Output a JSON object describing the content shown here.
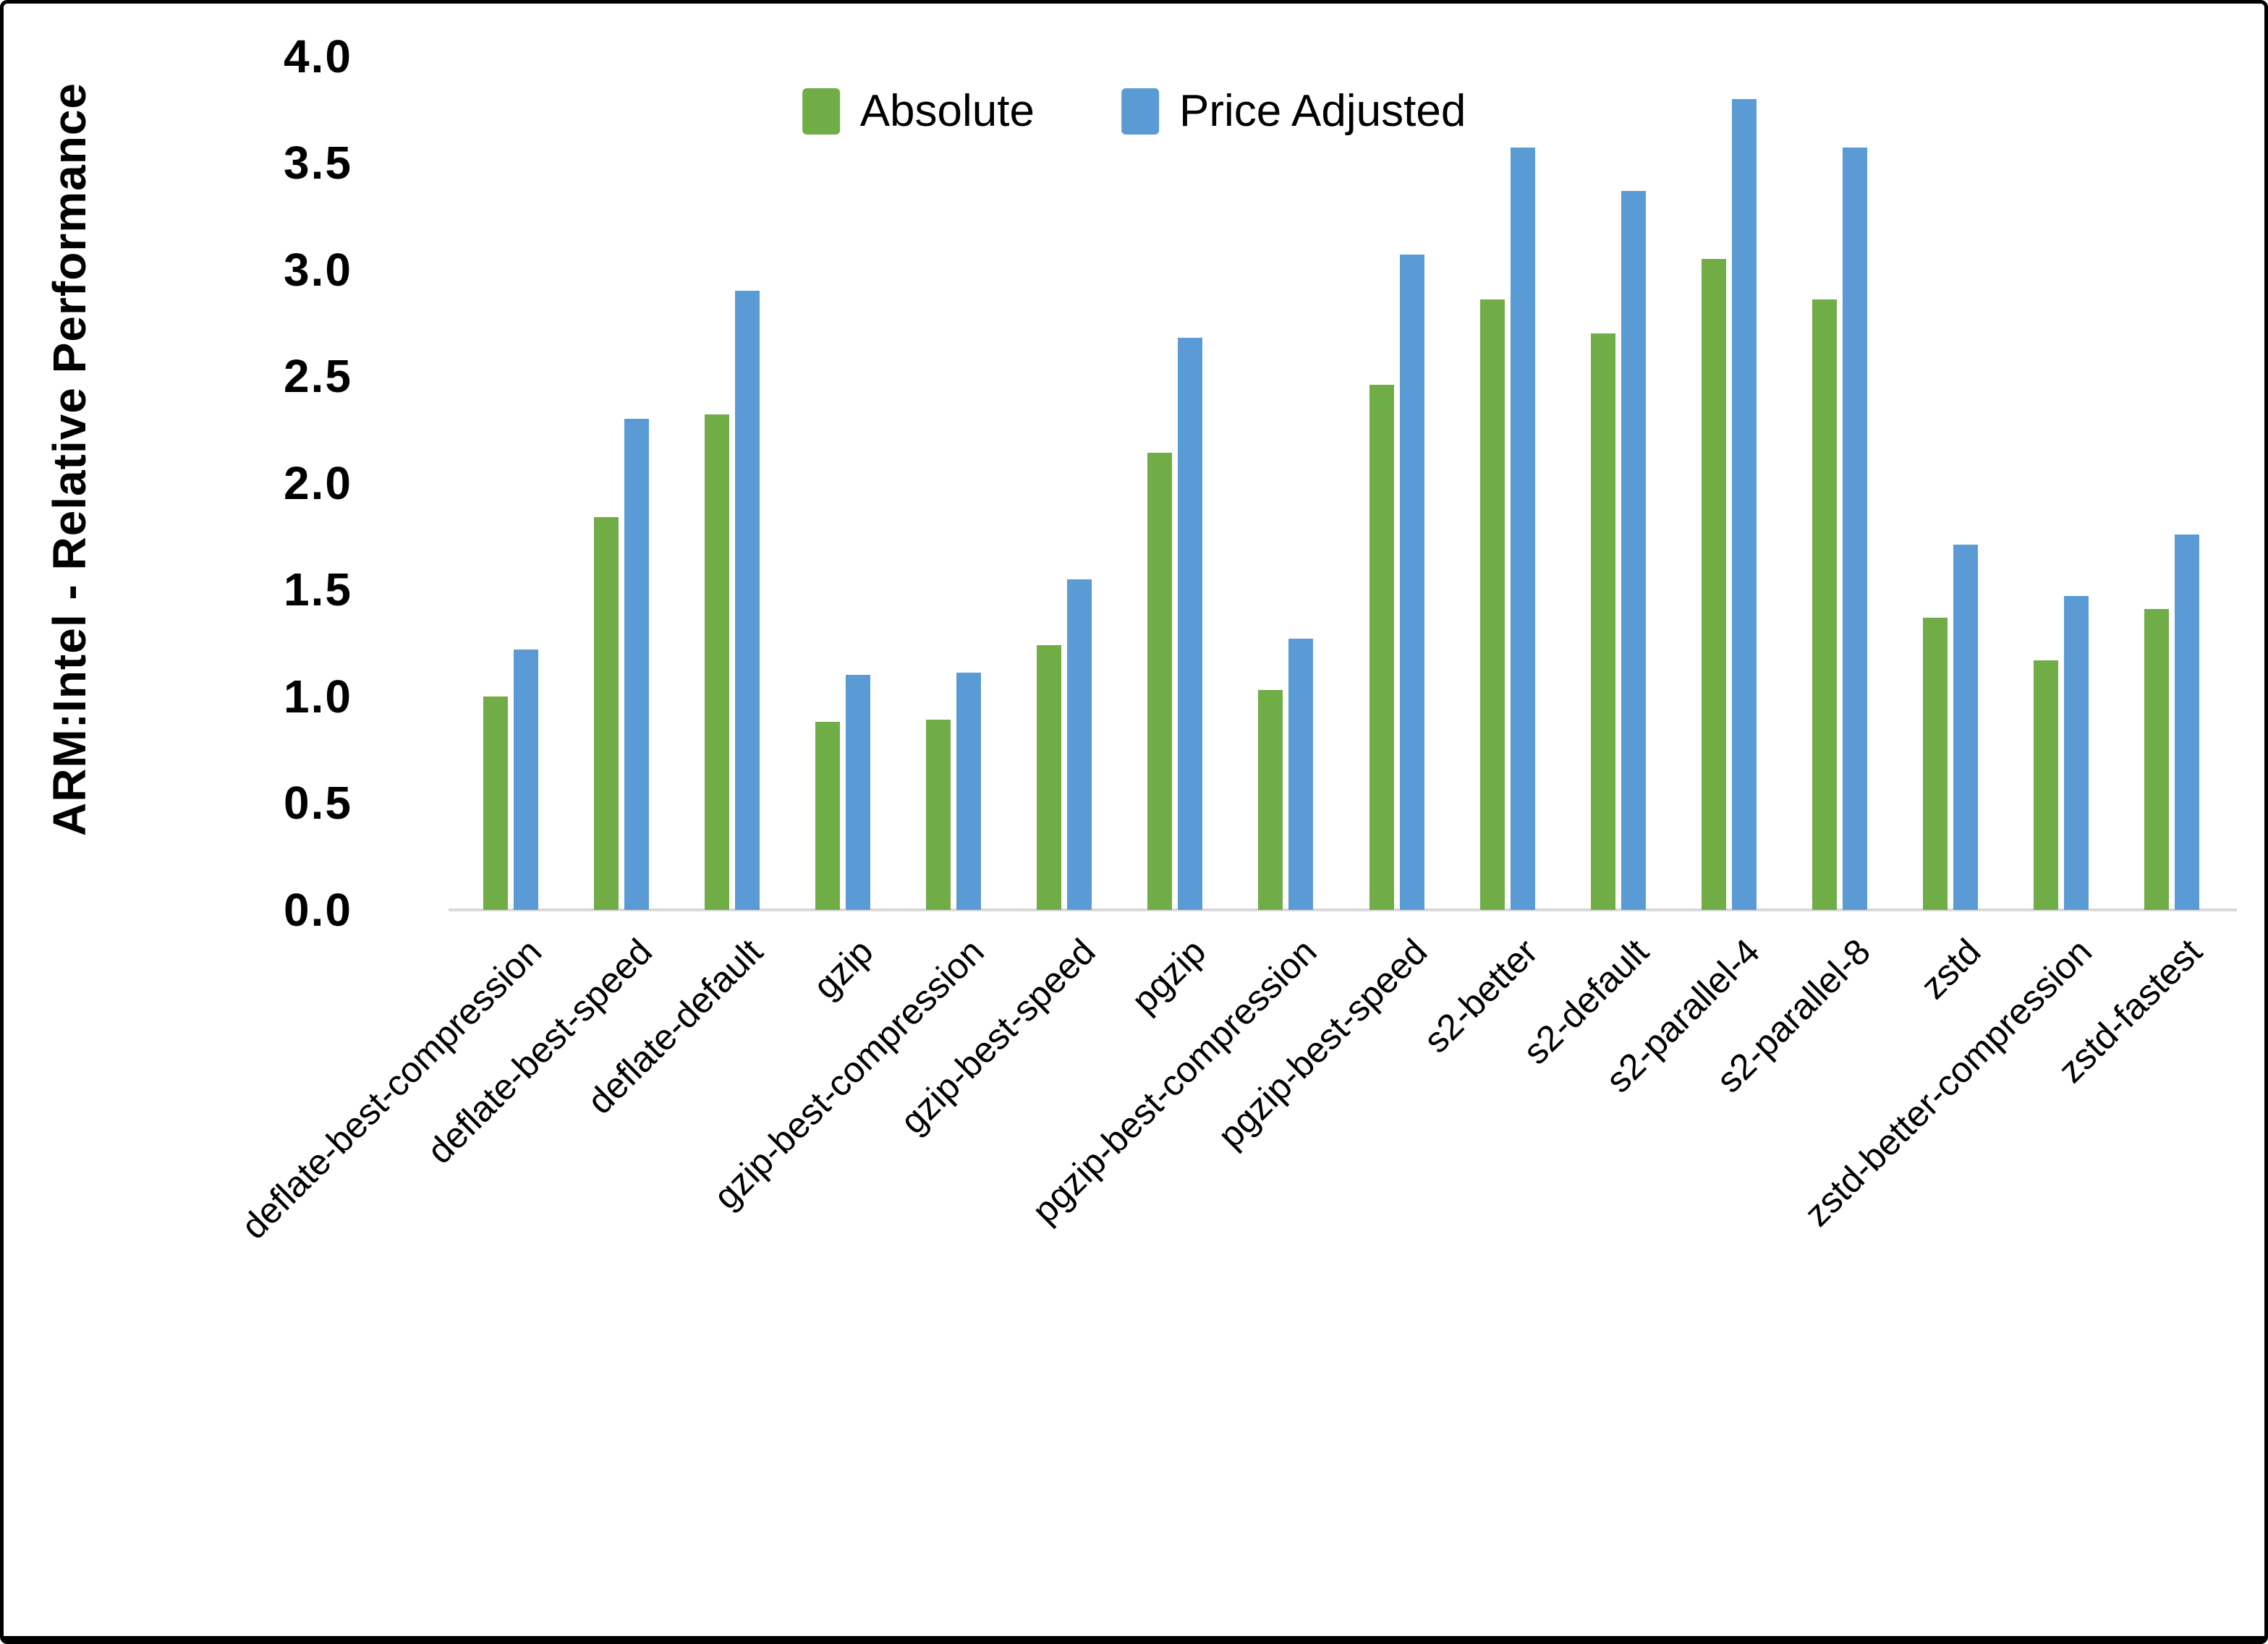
{
  "chart_data": {
    "type": "bar",
    "title": "",
    "ylabel": "ARM:Intel - Relative Performance",
    "xlabel": "",
    "ylim": [
      0.0,
      4.0
    ],
    "ytick_step": 0.5,
    "ytick_labels": [
      "0.0",
      "0.5",
      "1.0",
      "1.5",
      "2.0",
      "2.5",
      "3.0",
      "3.5",
      "4.0"
    ],
    "grid": false,
    "legend_position": "top-center",
    "axis_line_color": "#d9d9d9",
    "categories": [
      "deflate-best-compression",
      "deflate-best-speed",
      "deflate-default",
      "gzip",
      "gzip-best-compression",
      "gzip-best-speed",
      "pgzip",
      "pgzip-best-compression",
      "pgzip-best-speed",
      "s2-better",
      "s2-default",
      "s2-parallel-4",
      "s2-parallel-8",
      "zstd",
      "zstd-better-compression",
      "zstd-fastest"
    ],
    "series": [
      {
        "name": "Absolute",
        "color": "#70AD47",
        "values": [
          1.0,
          1.84,
          2.32,
          0.88,
          0.89,
          1.24,
          2.14,
          1.03,
          2.46,
          2.86,
          2.7,
          3.05,
          2.86,
          1.37,
          1.17,
          1.41
        ]
      },
      {
        "name": "Price Adjusted",
        "color": "#5B9BD5",
        "values": [
          1.22,
          2.3,
          2.9,
          1.1,
          1.11,
          1.55,
          2.68,
          1.27,
          3.07,
          3.57,
          3.37,
          3.8,
          3.57,
          1.71,
          1.47,
          1.76
        ]
      }
    ]
  }
}
